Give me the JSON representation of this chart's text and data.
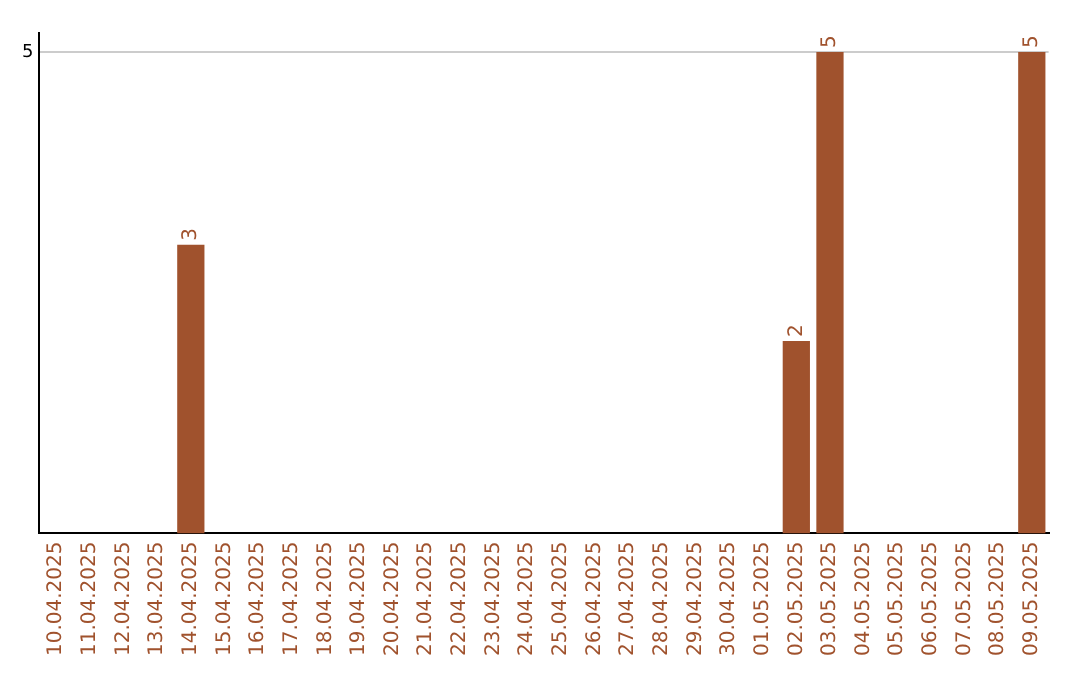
{
  "chart_data": {
    "type": "bar",
    "categories": [
      "10.04.2025",
      "11.04.2025",
      "12.04.2025",
      "13.04.2025",
      "14.04.2025",
      "15.04.2025",
      "16.04.2025",
      "17.04.2025",
      "18.04.2025",
      "19.04.2025",
      "20.04.2025",
      "21.04.2025",
      "22.04.2025",
      "23.04.2025",
      "24.04.2025",
      "25.04.2025",
      "26.04.2025",
      "27.04.2025",
      "28.04.2025",
      "29.04.2025",
      "30.04.2025",
      "01.05.2025",
      "02.05.2025",
      "03.05.2025",
      "04.05.2025",
      "05.05.2025",
      "06.05.2025",
      "07.05.2025",
      "08.05.2025",
      "09.05.2025"
    ],
    "values": [
      0,
      0,
      0,
      0,
      3,
      0,
      0,
      0,
      0,
      0,
      0,
      0,
      0,
      0,
      0,
      0,
      0,
      0,
      0,
      0,
      0,
      0,
      2,
      5,
      0,
      0,
      0,
      0,
      0,
      5
    ],
    "value_labels": [
      null,
      null,
      null,
      null,
      "3",
      null,
      null,
      null,
      null,
      null,
      null,
      null,
      null,
      null,
      null,
      null,
      null,
      null,
      null,
      null,
      null,
      null,
      "2",
      "5",
      null,
      null,
      null,
      null,
      null,
      "5"
    ],
    "color": "#a0522d",
    "ylim": [
      0,
      5.2
    ],
    "yticks": [
      5
    ],
    "grid": "y",
    "legend": false
  }
}
